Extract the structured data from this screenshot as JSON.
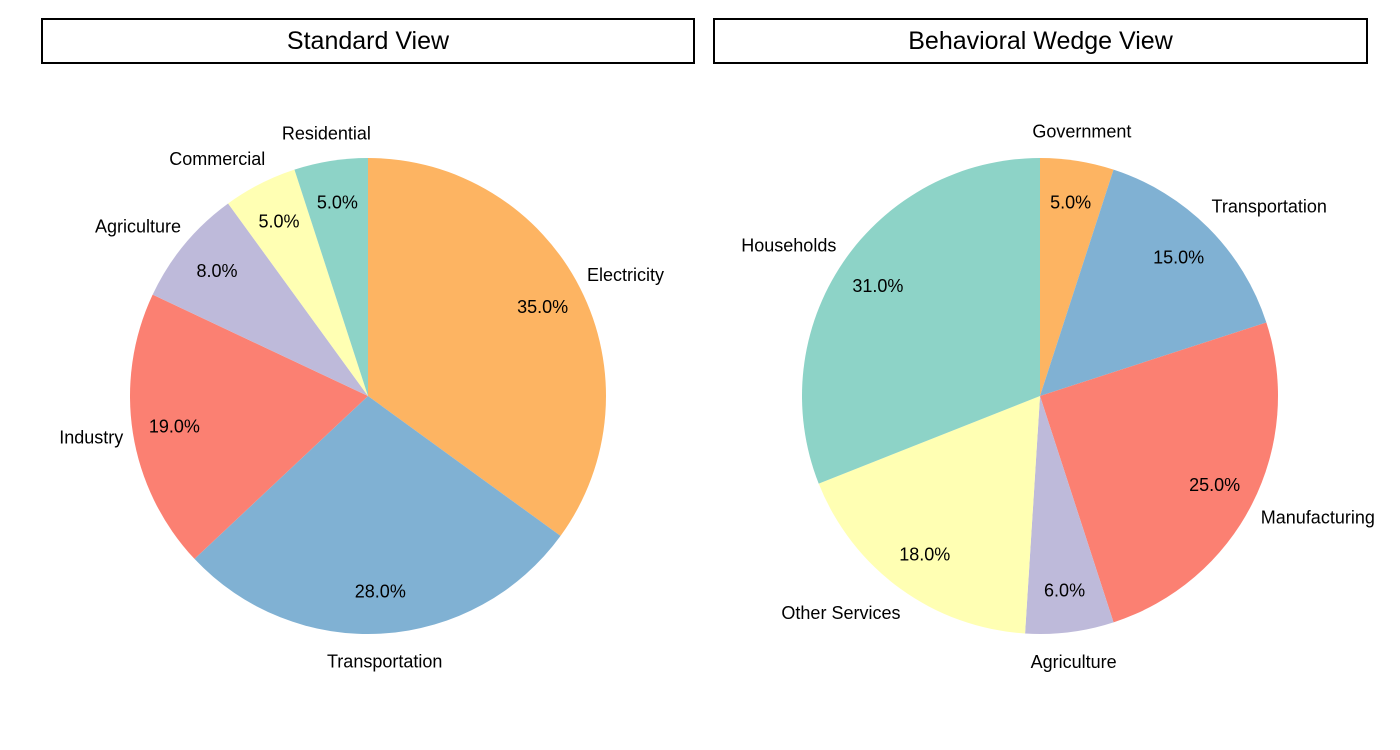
{
  "chart_data": [
    {
      "type": "pie",
      "title": "Standard View",
      "start": "12 o'clock",
      "direction": "clockwise",
      "slices": [
        {
          "label": "Electricity",
          "value": 35.0,
          "value_label": "35.0%",
          "color": "#FDB462"
        },
        {
          "label": "Transportation",
          "value": 28.0,
          "value_label": "28.0%",
          "color": "#80B1D3"
        },
        {
          "label": "Industry",
          "value": 19.0,
          "value_label": "19.0%",
          "color": "#FB8072"
        },
        {
          "label": "Agriculture",
          "value": 8.0,
          "value_label": "8.0%",
          "color": "#BEBADA"
        },
        {
          "label": "Commercial",
          "value": 5.0,
          "value_label": "5.0%",
          "color": "#FFFFB3"
        },
        {
          "label": "Residential",
          "value": 5.0,
          "value_label": "5.0%",
          "color": "#8DD3C7"
        }
      ]
    },
    {
      "type": "pie",
      "title": "Behavioral Wedge View",
      "start": "12 o'clock",
      "direction": "clockwise",
      "slices": [
        {
          "label": "Government",
          "value": 5.0,
          "value_label": "5.0%",
          "color": "#FDB462"
        },
        {
          "label": "Transportation",
          "value": 15.0,
          "value_label": "15.0%",
          "color": "#80B1D3"
        },
        {
          "label": "Manufacturing",
          "value": 25.0,
          "value_label": "25.0%",
          "color": "#FB8072"
        },
        {
          "label": "Agriculture",
          "value": 6.0,
          "value_label": "6.0%",
          "color": "#BEBADA"
        },
        {
          "label": "Other Services",
          "value": 18.0,
          "value_label": "18.0%",
          "color": "#FFFFB3"
        },
        {
          "label": "Households",
          "value": 31.0,
          "value_label": "31.0%",
          "color": "#8DD3C7"
        }
      ]
    }
  ]
}
